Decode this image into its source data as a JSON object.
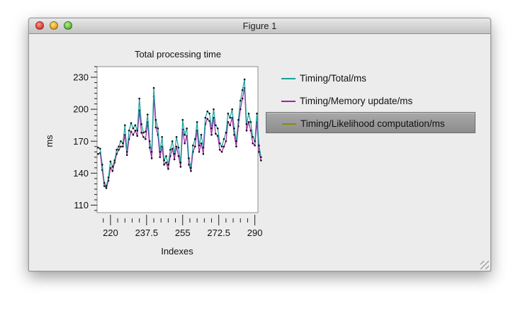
{
  "window": {
    "title": "Figure 1"
  },
  "colors": {
    "total": "#1a9e9a",
    "memory": "#a020a8",
    "likelihood": "#8a8a10"
  },
  "chart_data": {
    "type": "line",
    "title": "Total processing time",
    "xlabel": "Indexes",
    "ylabel": "ms",
    "xlim": [
      213.5,
      291.5
    ],
    "ylim": [
      103,
      240
    ],
    "xticks": [
      220,
      237.5,
      255,
      272.5,
      290
    ],
    "xtick_labels": [
      "220",
      "237.5",
      "255",
      "272.5",
      "290"
    ],
    "yticks": [
      110,
      140,
      170,
      200,
      230
    ],
    "ytick_labels": [
      "110",
      "140",
      "170",
      "200",
      "230"
    ],
    "x_start": 214,
    "x_step": 1,
    "series": [
      {
        "name": "Timing/Total/ms",
        "color": "#1a9e9a",
        "values": [
          164,
          163,
          148,
          131,
          128,
          136,
          151,
          146,
          152,
          162,
          165,
          170,
          168,
          185,
          160,
          180,
          187,
          182,
          185,
          180,
          210,
          186,
          178,
          179,
          195,
          170,
          160,
          220,
          190,
          182,
          160,
          174,
          152,
          156,
          148,
          162,
          170,
          158,
          174,
          164,
          150,
          190,
          176,
          182,
          154,
          145,
          166,
          172,
          188,
          166,
          176,
          164,
          192,
          198,
          196,
          182,
          200,
          185,
          182,
          168,
          165,
          172,
          178,
          196,
          192,
          200,
          182,
          170,
          190,
          208,
          218,
          228,
          186,
          196,
          188,
          174,
          170,
          196,
          166,
          155
        ]
      },
      {
        "name": "Timing/Memory update/ms",
        "color": "#a020a8",
        "values": [
          158,
          159,
          143,
          128,
          126,
          133,
          145,
          142,
          150,
          158,
          162,
          165,
          165,
          176,
          157,
          172,
          179,
          176,
          180,
          175,
          199,
          178,
          174,
          172,
          188,
          164,
          154,
          212,
          183,
          176,
          155,
          165,
          148,
          150,
          144,
          156,
          163,
          153,
          165,
          156,
          146,
          181,
          168,
          175,
          148,
          142,
          160,
          165,
          180,
          160,
          168,
          158,
          186,
          191,
          189,
          176,
          192,
          177,
          175,
          162,
          160,
          165,
          170,
          188,
          185,
          192,
          176,
          165,
          184,
          200,
          210,
          220,
          180,
          188,
          180,
          168,
          166,
          188,
          160,
          152
        ]
      },
      {
        "name": "Timing/Likelihood computation/ms",
        "color": "#8a8a10",
        "values": []
      }
    ]
  }
}
